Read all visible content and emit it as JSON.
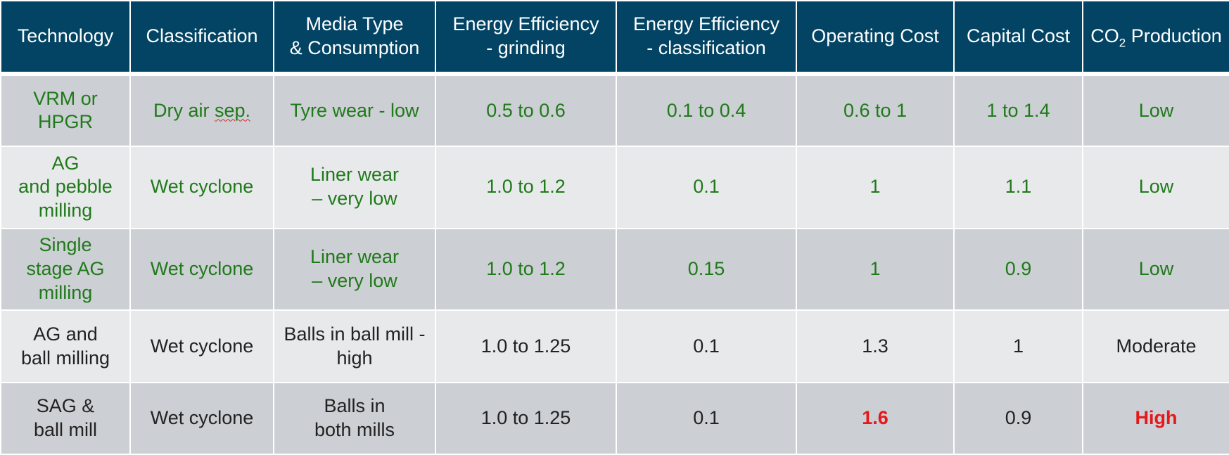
{
  "table": {
    "headers": [
      "Technology",
      "Classification",
      "Media Type\n& Consumption",
      "Energy Efficiency\n- grinding",
      "Energy Efficiency\n- classification",
      "Operating Cost",
      "Capital Cost",
      "CO",
      "2",
      " Production"
    ],
    "header_co2": {
      "prefix": "CO",
      "subscript": "2",
      "suffix": " Production"
    },
    "rows": [
      {
        "technology": "VRM or\nHPGR",
        "classification_pre": "Dry air ",
        "classification_squiggle": "sep.",
        "media": "Tyre wear - low",
        "energy_grinding": "0.5 to 0.6",
        "energy_classification": "0.1 to 0.4",
        "operating_cost": "0.6 to 1",
        "capital_cost": "1 to 1.4",
        "co2": "Low"
      },
      {
        "technology": "AG\nand pebble\nmilling",
        "classification": "Wet cyclone",
        "media": "Liner wear\n– very low",
        "energy_grinding": "1.0 to 1.2",
        "energy_classification": "0.1",
        "operating_cost": "1",
        "capital_cost": "1.1",
        "co2": "Low"
      },
      {
        "technology": "Single\nstage AG\nmilling",
        "classification": "Wet cyclone",
        "media": "Liner wear\n– very low",
        "energy_grinding": "1.0 to 1.2",
        "energy_classification": "0.15",
        "operating_cost": "1",
        "capital_cost": "0.9",
        "co2": "Low"
      },
      {
        "technology": "AG and\nball milling",
        "classification": "Wet cyclone",
        "media": "Balls in ball mill -\nhigh",
        "energy_grinding": "1.0 to 1.25",
        "energy_classification": "0.1",
        "operating_cost": "1.3",
        "capital_cost": "1",
        "co2": "Moderate"
      },
      {
        "technology": "SAG &\nball mill",
        "classification": "Wet cyclone",
        "media": "Balls in\nboth mills",
        "energy_grinding": "1.0 to 1.25",
        "energy_classification": "0.1",
        "operating_cost": "1.6",
        "capital_cost": "0.9",
        "co2": "High"
      }
    ],
    "colors": {
      "header_bg": "#034464",
      "row_dark": "#cccfd3",
      "row_light": "#e8e9eb",
      "green_text": "#1f7a1a",
      "red_text": "#e5191b",
      "dark_text": "#222222"
    }
  }
}
